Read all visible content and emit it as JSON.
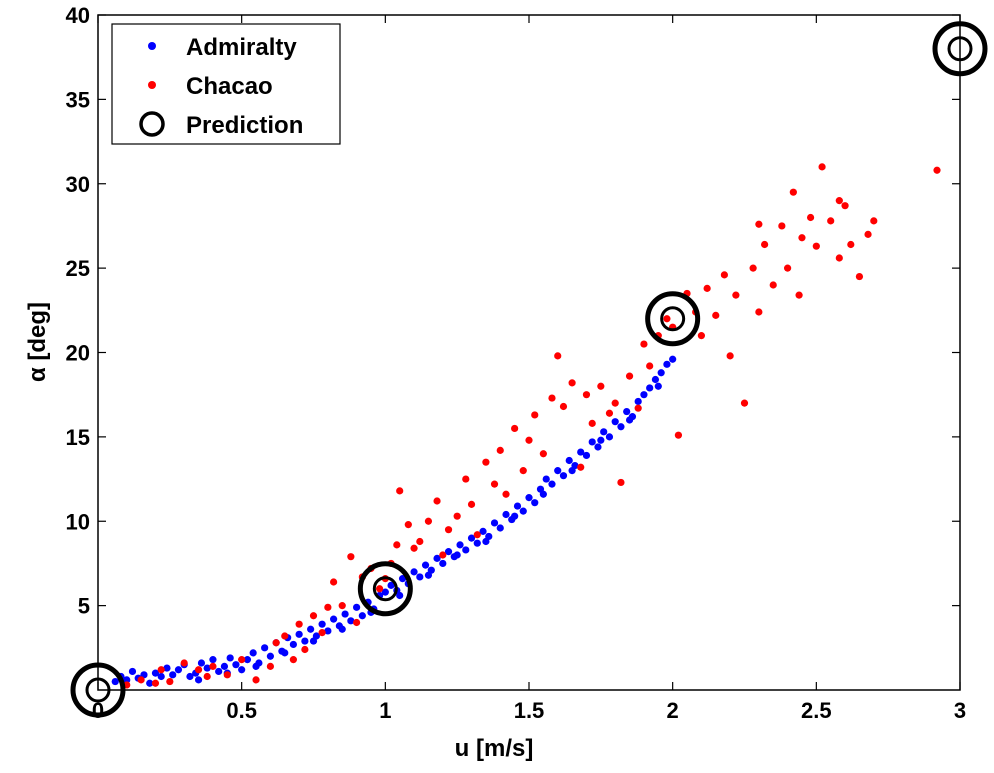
{
  "chart_data": {
    "type": "scatter",
    "title": "",
    "xlabel": "u [m/s]",
    "ylabel": "α [deg]",
    "xlim": [
      0,
      3
    ],
    "ylim": [
      0,
      40
    ],
    "xticks": [
      "0",
      "0.5",
      "1",
      "1.5",
      "2",
      "2.5",
      "3"
    ],
    "yticks": [
      "5",
      "10",
      "15",
      "20",
      "25",
      "30",
      "35",
      "40"
    ],
    "grid": false,
    "legend_position": "top-left",
    "series": [
      {
        "name": "Admiralty",
        "color": "#0000ff",
        "marker": "dot",
        "points": [
          [
            0.06,
            0.5
          ],
          [
            0.08,
            0.8
          ],
          [
            0.1,
            0.6
          ],
          [
            0.12,
            1.1
          ],
          [
            0.14,
            0.7
          ],
          [
            0.16,
            0.9
          ],
          [
            0.18,
            0.4
          ],
          [
            0.2,
            1.0
          ],
          [
            0.22,
            0.8
          ],
          [
            0.24,
            1.3
          ],
          [
            0.26,
            0.9
          ],
          [
            0.28,
            1.2
          ],
          [
            0.3,
            1.5
          ],
          [
            0.32,
            0.8
          ],
          [
            0.34,
            1.0
          ],
          [
            0.36,
            1.6
          ],
          [
            0.38,
            1.3
          ],
          [
            0.4,
            1.8
          ],
          [
            0.42,
            1.1
          ],
          [
            0.44,
            1.4
          ],
          [
            0.46,
            1.9
          ],
          [
            0.48,
            1.5
          ],
          [
            0.5,
            1.2
          ],
          [
            0.52,
            1.8
          ],
          [
            0.54,
            2.2
          ],
          [
            0.56,
            1.6
          ],
          [
            0.58,
            2.5
          ],
          [
            0.6,
            2.0
          ],
          [
            0.62,
            2.8
          ],
          [
            0.64,
            2.3
          ],
          [
            0.66,
            3.1
          ],
          [
            0.68,
            2.7
          ],
          [
            0.7,
            3.3
          ],
          [
            0.72,
            2.9
          ],
          [
            0.74,
            3.6
          ],
          [
            0.76,
            3.2
          ],
          [
            0.78,
            3.9
          ],
          [
            0.8,
            3.5
          ],
          [
            0.82,
            4.2
          ],
          [
            0.84,
            3.8
          ],
          [
            0.86,
            4.5
          ],
          [
            0.88,
            4.1
          ],
          [
            0.9,
            4.9
          ],
          [
            0.92,
            4.4
          ],
          [
            0.94,
            5.2
          ],
          [
            0.96,
            4.8
          ],
          [
            0.98,
            5.6
          ],
          [
            1.0,
            5.8
          ],
          [
            1.02,
            6.2
          ],
          [
            1.04,
            5.9
          ],
          [
            1.06,
            6.6
          ],
          [
            1.08,
            6.3
          ],
          [
            1.1,
            7.0
          ],
          [
            1.12,
            6.7
          ],
          [
            1.14,
            7.4
          ],
          [
            1.16,
            7.1
          ],
          [
            1.18,
            7.8
          ],
          [
            1.2,
            7.5
          ],
          [
            1.22,
            8.2
          ],
          [
            1.24,
            7.9
          ],
          [
            1.26,
            8.6
          ],
          [
            1.28,
            8.3
          ],
          [
            1.3,
            9.0
          ],
          [
            1.32,
            8.7
          ],
          [
            1.34,
            9.4
          ],
          [
            1.36,
            9.1
          ],
          [
            1.38,
            9.9
          ],
          [
            1.4,
            9.6
          ],
          [
            1.42,
            10.4
          ],
          [
            1.44,
            10.1
          ],
          [
            1.46,
            10.9
          ],
          [
            1.48,
            10.6
          ],
          [
            1.5,
            11.4
          ],
          [
            1.52,
            11.1
          ],
          [
            1.54,
            11.9
          ],
          [
            1.56,
            12.5
          ],
          [
            1.58,
            12.2
          ],
          [
            1.6,
            13.0
          ],
          [
            1.62,
            12.7
          ],
          [
            1.64,
            13.6
          ],
          [
            1.66,
            13.3
          ],
          [
            1.68,
            14.1
          ],
          [
            1.7,
            13.9
          ],
          [
            1.72,
            14.7
          ],
          [
            1.74,
            14.4
          ],
          [
            1.76,
            15.3
          ],
          [
            1.78,
            15.0
          ],
          [
            1.8,
            15.9
          ],
          [
            1.82,
            15.6
          ],
          [
            1.84,
            16.5
          ],
          [
            1.86,
            16.2
          ],
          [
            1.88,
            17.1
          ],
          [
            1.9,
            17.5
          ],
          [
            1.92,
            17.9
          ],
          [
            1.94,
            18.4
          ],
          [
            1.96,
            18.8
          ],
          [
            1.98,
            19.3
          ],
          [
            2.0,
            19.6
          ],
          [
            0.35,
            0.6
          ],
          [
            0.45,
            1.0
          ],
          [
            0.55,
            1.4
          ],
          [
            0.65,
            2.2
          ],
          [
            0.75,
            2.9
          ],
          [
            0.85,
            3.6
          ],
          [
            0.95,
            4.6
          ],
          [
            1.05,
            5.6
          ],
          [
            1.15,
            6.8
          ],
          [
            1.25,
            8.0
          ],
          [
            1.35,
            8.8
          ],
          [
            1.45,
            10.3
          ],
          [
            1.55,
            11.6
          ],
          [
            1.65,
            13.0
          ],
          [
            1.75,
            14.8
          ],
          [
            1.85,
            16.0
          ],
          [
            1.95,
            18.0
          ]
        ]
      },
      {
        "name": "Chacao",
        "color": "#ff0000",
        "marker": "dot",
        "points": [
          [
            0.1,
            0.3
          ],
          [
            0.15,
            0.6
          ],
          [
            0.2,
            0.4
          ],
          [
            0.22,
            1.2
          ],
          [
            0.25,
            0.5
          ],
          [
            0.3,
            1.6
          ],
          [
            0.35,
            1.2
          ],
          [
            0.38,
            0.8
          ],
          [
            0.4,
            1.4
          ],
          [
            0.45,
            0.9
          ],
          [
            0.5,
            1.8
          ],
          [
            0.55,
            0.6
          ],
          [
            0.6,
            1.4
          ],
          [
            0.62,
            2.8
          ],
          [
            0.65,
            3.2
          ],
          [
            0.68,
            1.8
          ],
          [
            0.7,
            3.9
          ],
          [
            0.72,
            2.4
          ],
          [
            0.75,
            4.4
          ],
          [
            0.78,
            3.4
          ],
          [
            0.8,
            4.9
          ],
          [
            0.82,
            6.4
          ],
          [
            0.85,
            5.0
          ],
          [
            0.88,
            7.9
          ],
          [
            0.9,
            4.0
          ],
          [
            0.92,
            6.7
          ],
          [
            0.95,
            7.2
          ],
          [
            0.98,
            6.0
          ],
          [
            1.0,
            6.6
          ],
          [
            1.02,
            7.5
          ],
          [
            1.04,
            8.6
          ],
          [
            1.05,
            11.8
          ],
          [
            1.08,
            9.8
          ],
          [
            1.1,
            8.4
          ],
          [
            1.12,
            8.8
          ],
          [
            1.15,
            10.0
          ],
          [
            1.18,
            11.2
          ],
          [
            1.2,
            8.0
          ],
          [
            1.22,
            9.5
          ],
          [
            1.25,
            10.3
          ],
          [
            1.28,
            12.5
          ],
          [
            1.3,
            11.0
          ],
          [
            1.32,
            9.2
          ],
          [
            1.35,
            13.5
          ],
          [
            1.38,
            12.2
          ],
          [
            1.4,
            14.2
          ],
          [
            1.42,
            11.6
          ],
          [
            1.45,
            15.5
          ],
          [
            1.48,
            13.0
          ],
          [
            1.5,
            14.8
          ],
          [
            1.52,
            16.3
          ],
          [
            1.55,
            14.0
          ],
          [
            1.58,
            17.3
          ],
          [
            1.6,
            19.8
          ],
          [
            1.62,
            16.8
          ],
          [
            1.65,
            18.2
          ],
          [
            1.68,
            13.2
          ],
          [
            1.7,
            17.5
          ],
          [
            1.72,
            15.8
          ],
          [
            1.75,
            18.0
          ],
          [
            1.78,
            16.4
          ],
          [
            1.8,
            17.0
          ],
          [
            1.82,
            12.3
          ],
          [
            1.85,
            18.6
          ],
          [
            1.88,
            16.7
          ],
          [
            1.9,
            20.5
          ],
          [
            1.92,
            19.2
          ],
          [
            1.95,
            21.0
          ],
          [
            1.98,
            22.0
          ],
          [
            2.0,
            21.5
          ],
          [
            2.02,
            15.1
          ],
          [
            2.05,
            23.5
          ],
          [
            2.08,
            22.4
          ],
          [
            2.1,
            21.0
          ],
          [
            2.12,
            23.8
          ],
          [
            2.15,
            22.2
          ],
          [
            2.18,
            24.6
          ],
          [
            2.2,
            19.8
          ],
          [
            2.22,
            23.4
          ],
          [
            2.25,
            17.0
          ],
          [
            2.28,
            25.0
          ],
          [
            2.3,
            22.4
          ],
          [
            2.32,
            26.4
          ],
          [
            2.35,
            24.0
          ],
          [
            2.38,
            27.5
          ],
          [
            2.4,
            25.0
          ],
          [
            2.42,
            29.5
          ],
          [
            2.45,
            26.8
          ],
          [
            2.48,
            28.0
          ],
          [
            2.5,
            26.3
          ],
          [
            2.52,
            31.0
          ],
          [
            2.55,
            27.8
          ],
          [
            2.58,
            25.6
          ],
          [
            2.6,
            28.7
          ],
          [
            2.62,
            26.4
          ],
          [
            2.65,
            24.5
          ],
          [
            2.68,
            27.0
          ],
          [
            2.7,
            27.8
          ],
          [
            2.92,
            30.8
          ],
          [
            2.3,
            27.6
          ],
          [
            2.44,
            23.4
          ],
          [
            2.58,
            29.0
          ]
        ]
      },
      {
        "name": "Prediction",
        "color": "#000000",
        "marker": "double-circle",
        "points": [
          [
            0.0,
            0.0
          ],
          [
            1.0,
            6.0
          ],
          [
            2.0,
            22.0
          ],
          [
            3.0,
            38.0
          ]
        ]
      }
    ]
  }
}
